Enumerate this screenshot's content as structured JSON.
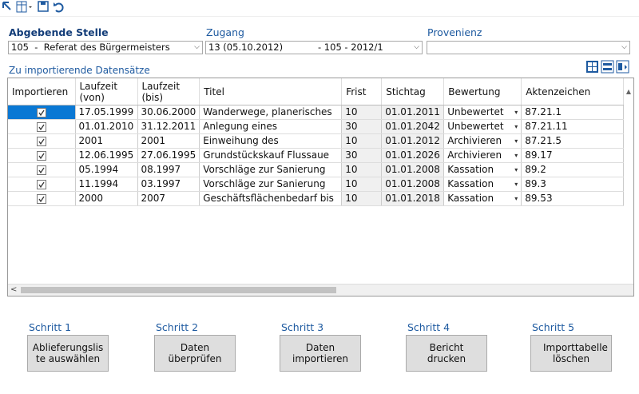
{
  "form": {
    "fields": [
      {
        "label": "Abgebende Stelle",
        "value": "105  -  Referat des Bürgermeisters"
      },
      {
        "label": "Zugang",
        "value": "13 (05.10.2012)",
        "value_suffix": "- 105 - 2012/1"
      },
      {
        "label": "Provenienz"
      }
    ]
  },
  "table": {
    "title": "Zu importierende Datensätze",
    "columns": [
      "Importieren",
      "Laufzeit (von)",
      "Laufzeit (bis)",
      "Titel",
      "Frist",
      "Stichtag",
      "Bewertung",
      "Aktenzeichen"
    ],
    "rows": [
      {
        "checked": true,
        "cells": [
          "17.05.1999",
          "30.06.2000",
          "Wanderwege, planerisches",
          "10",
          "01.01.2011",
          "Unbewertet",
          "87.21.1"
        ]
      },
      {
        "checked": true,
        "cells": [
          "01.01.2010",
          "31.12.2011",
          "Anlegung eines",
          "30",
          "01.01.2042",
          "Unbewertet",
          "87.21.11"
        ]
      },
      {
        "checked": true,
        "cells": [
          "2001",
          "2001",
          "Einweihung des",
          "10",
          "01.01.2012",
          "Archivieren",
          "87.21.5"
        ]
      },
      {
        "checked": true,
        "cells": [
          "12.06.1995",
          "27.06.1995",
          "Grundstückskauf Flussaue",
          "30",
          "01.01.2026",
          "Archivieren",
          "89.17"
        ]
      },
      {
        "checked": true,
        "cells": [
          "05.1994",
          "08.1997",
          "Vorschläge zur Sanierung",
          "10",
          "01.01.2008",
          "Kassation",
          "89.2"
        ]
      },
      {
        "checked": true,
        "cells": [
          "11.1994",
          "03.1997",
          "Vorschläge zur Sanierung",
          "10",
          "01.01.2008",
          "Kassation",
          "89.3"
        ]
      },
      {
        "checked": true,
        "cells": [
          "2000",
          "2007",
          "Geschäftsflächenbedarf bis",
          "10",
          "01.01.2018",
          "Kassation",
          "89.53"
        ]
      }
    ]
  },
  "steps": [
    {
      "label": "Schritt 1",
      "button": "Ablieferungsliste auswählen"
    },
    {
      "label": "Schritt 2",
      "button": "Daten überprüfen"
    },
    {
      "label": "Schritt 3",
      "button": "Daten importieren"
    },
    {
      "label": "Schritt 4",
      "button": "Bericht drucken"
    },
    {
      "label": "Schritt 5",
      "button": "Importtabelle löschen"
    }
  ]
}
